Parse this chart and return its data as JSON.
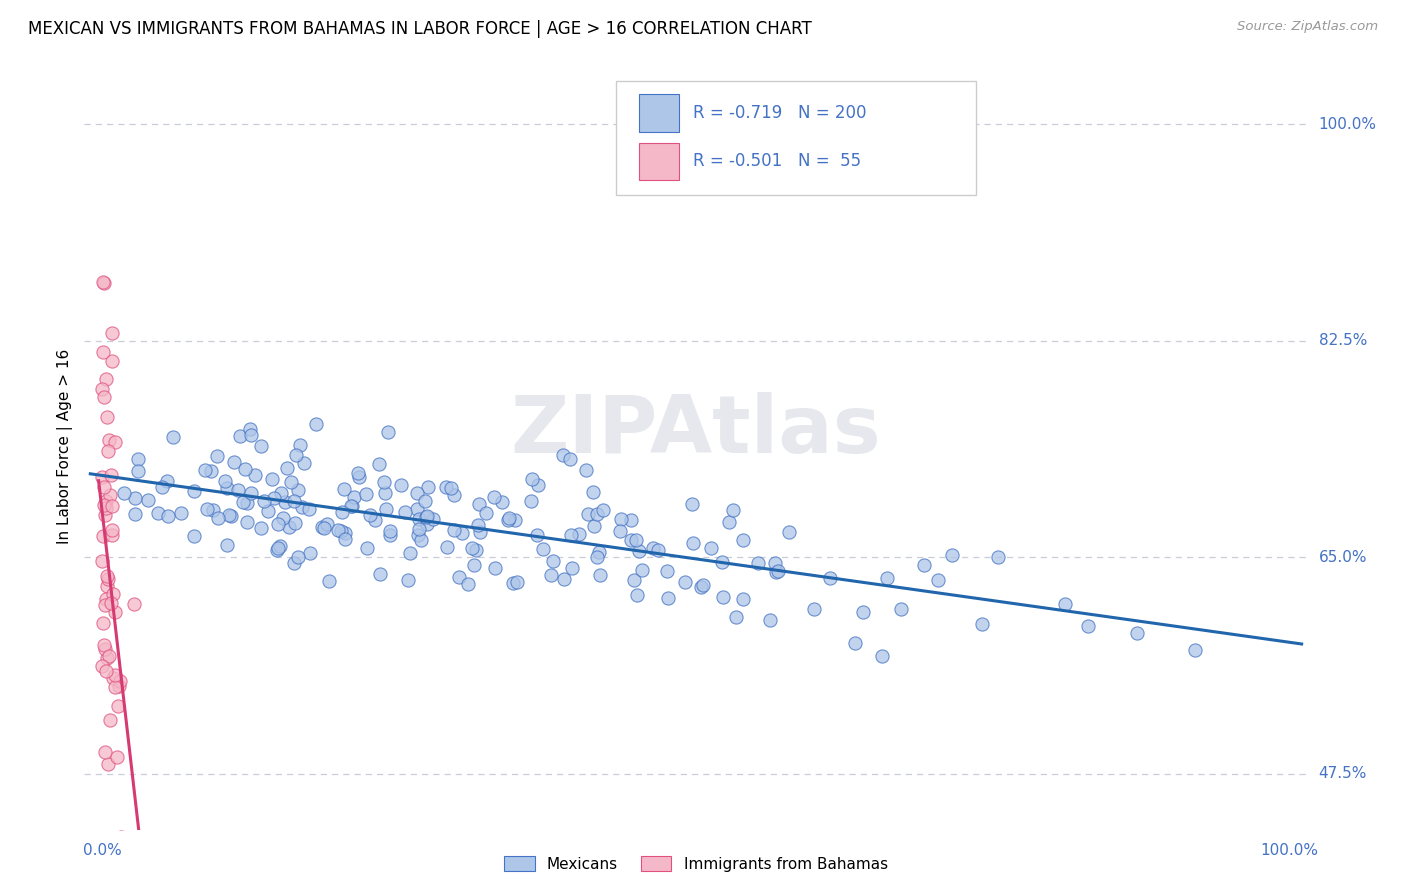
{
  "title": "MEXICAN VS IMMIGRANTS FROM BAHAMAS IN LABOR FORCE | AGE > 16 CORRELATION CHART",
  "source": "Source: ZipAtlas.com",
  "ylabel": "In Labor Force | Age > 16",
  "yticks": [
    "47.5%",
    "65.0%",
    "82.5%",
    "100.0%"
  ],
  "ytick_vals": [
    0.475,
    0.65,
    0.825,
    1.0
  ],
  "legend_blue_R": "-0.719",
  "legend_blue_N": "200",
  "legend_pink_R": "-0.501",
  "legend_pink_N": "55",
  "blue_fill_color": "#aec6e8",
  "blue_edge_color": "#4472c4",
  "pink_fill_color": "#f4b8c8",
  "pink_edge_color": "#e05080",
  "blue_line_color": "#2166ac",
  "pink_line_color": "#d63a72",
  "watermark": "ZIPAtlas",
  "watermark_color": "#c8cdd8",
  "background_color": "#ffffff",
  "title_fontsize": 12,
  "ytick_color": "#4472c4",
  "xtick_color": "#4472c4",
  "legend_text_color": "#4472c4",
  "grid_color": "#c8cdd8",
  "blue_N": 200,
  "pink_N": 55,
  "blue_R": -0.719,
  "pink_R": -0.501
}
